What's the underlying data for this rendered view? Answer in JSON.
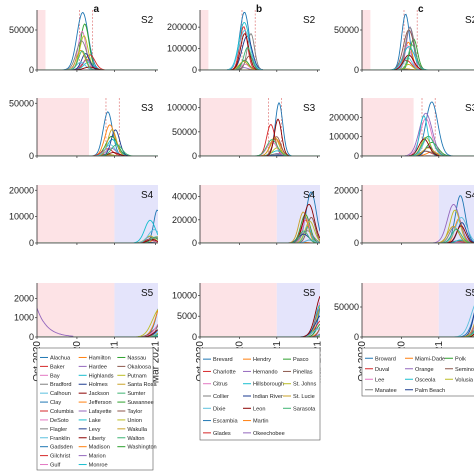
{
  "chart_data": [
    {
      "column": "a",
      "type": "line",
      "x_ticks": [
        "Oct 2020",
        "Nov 2020",
        "Jan 2021",
        "Mar 2021"
      ],
      "rows": [
        {
          "scenario": "S2",
          "y_ticks": [
            "0",
            "50000"
          ],
          "ylim": [
            0,
            75000
          ],
          "pink": [
            0,
            0.07
          ],
          "blue": null,
          "peak_at": 0.4,
          "width": 0.08,
          "max_peak": 72000
        },
        {
          "scenario": "S3",
          "y_ticks": [
            "0",
            "50000"
          ],
          "ylim": [
            0,
            55000
          ],
          "pink": [
            0,
            0.43
          ],
          "blue": null,
          "peak_at": 0.62,
          "width": 0.08,
          "max_peak": 42000
        },
        {
          "scenario": "S4",
          "y_ticks": [
            "0",
            "10000",
            "20000"
          ],
          "ylim": [
            0,
            22000
          ],
          "pink": [
            0,
            0.64
          ],
          "blue": [
            0.64,
            1
          ],
          "peak_at": 0.96,
          "width": 0.08,
          "max_peak": 12500
        },
        {
          "scenario": "S5",
          "y_ticks": [
            "0",
            "1000",
            "2000"
          ],
          "ylim": [
            0,
            2800
          ],
          "pink": [
            0,
            0.64
          ],
          "blue": [
            0.64,
            1
          ],
          "peak_at": 1.05,
          "width": 0.12,
          "max_peak": 2900
        }
      ],
      "legend": [
        "Alachua",
        "Hamilton",
        "Nassau",
        "Baker",
        "Hardee",
        "Okaloosa",
        "Bay",
        "Highlands",
        "Putnam",
        "Bradford",
        "Holmes",
        "Santa Rosa",
        "Calhoun",
        "Jackson",
        "Sumter",
        "Clay",
        "Jefferson",
        "Suwannee",
        "Columbia",
        "Lafayette",
        "Taylor",
        "DeSoto",
        "Lake",
        "Union",
        "Flagler",
        "Levy",
        "Wakulla",
        "Franklin",
        "Liberty",
        "Walton",
        "Gadsden",
        "Madison",
        "Washington",
        "Gilchrist",
        "Marion",
        "",
        "Gulf",
        "Monroe",
        ""
      ]
    },
    {
      "column": "b",
      "type": "line",
      "x_ticks": [
        "Oct 2020",
        "Nov 2020",
        "Jan 2021",
        "Mar 2021"
      ],
      "rows": [
        {
          "scenario": "S2",
          "y_ticks": [
            "0",
            "100000",
            "200000"
          ],
          "ylim": [
            0,
            280000
          ],
          "pink": [
            0,
            0.07
          ],
          "blue": null,
          "peak_at": 0.4,
          "width": 0.08,
          "max_peak": 270000
        },
        {
          "scenario": "S3",
          "y_ticks": [
            "0",
            "50000",
            "100000"
          ],
          "ylim": [
            0,
            120000
          ],
          "pink": [
            0,
            0.43
          ],
          "blue": null,
          "peak_at": 0.62,
          "width": 0.08,
          "max_peak": 110000
        },
        {
          "scenario": "S4",
          "y_ticks": [
            "0",
            "20000",
            "40000"
          ],
          "ylim": [
            0,
            50000
          ],
          "pink": [
            0,
            0.64
          ],
          "blue": [
            0.64,
            1
          ],
          "peak_at": 0.9,
          "width": 0.08,
          "max_peak": 44000
        },
        {
          "scenario": "S5",
          "y_ticks": [
            "0",
            "5000",
            "10000"
          ],
          "ylim": [
            0,
            13000
          ],
          "pink": [
            0,
            0.64
          ],
          "blue": [
            0.64,
            1
          ],
          "peak_at": 1.03,
          "width": 0.1,
          "max_peak": 12500
        }
      ],
      "legend": [
        "Brevard",
        "Hendry",
        "Pasco",
        "Charlotte",
        "Hernando",
        "Pinellas",
        "Citrus",
        "Hillsborough",
        "St. Johns",
        "Collier",
        "Indian River",
        "St. Lucie",
        "Dixie",
        "Leon",
        "Sarasota",
        "Escambia",
        "Martin",
        "",
        "Glades",
        "Okeechobee",
        ""
      ]
    },
    {
      "column": "c",
      "type": "line",
      "x_ticks": [
        "Oct 2020",
        "Nov 2020",
        "Jan 2021",
        "Mar 2021"
      ],
      "rows": [
        {
          "scenario": "S2",
          "y_ticks": [
            "0",
            "50000"
          ],
          "ylim": [
            0,
            75000
          ],
          "pink": [
            0,
            0.07
          ],
          "blue": null,
          "peak_at": 0.4,
          "width": 0.08,
          "max_peak": 70000
        },
        {
          "scenario": "S3",
          "y_ticks": [
            "0",
            "100000",
            "200000"
          ],
          "ylim": [
            0,
            300000
          ],
          "pink": [
            0,
            0.43
          ],
          "blue": null,
          "peak_at": 0.55,
          "width": 0.09,
          "max_peak": 280000
        },
        {
          "scenario": "S4",
          "y_ticks": [
            "0",
            "10000",
            "20000"
          ],
          "ylim": [
            0,
            22000
          ],
          "pink": [
            0,
            0.64
          ],
          "blue": [
            0.64,
            1
          ],
          "peak_at": 0.8,
          "width": 0.09,
          "max_peak": 18000
        },
        {
          "scenario": "S5",
          "y_ticks": [
            "0",
            "50000"
          ],
          "ylim": [
            0,
            90000
          ],
          "pink": [
            0,
            0.64
          ],
          "blue": [
            0.64,
            1
          ],
          "peak_at": 1.0,
          "width": 0.1,
          "max_peak": 85000
        }
      ],
      "legend": [
        "Broward",
        "Miami-Dade",
        "Polk",
        "Duval",
        "Orange",
        "Seminole",
        "Lee",
        "Osceola",
        "Volusia",
        "Manatee",
        "Palm Beach",
        ""
      ]
    }
  ],
  "colors": {
    "pink_shade": "#fde3e6",
    "blue_shade": "#e4e4fb",
    "dashed_lines": "#e07a7a",
    "palette": [
      "#1f77b4",
      "#ff7f0e",
      "#2ca02c",
      "#d62728",
      "#9467bd",
      "#8c564b",
      "#e377c2",
      "#17becf",
      "#bcbd22",
      "#7f7f7f",
      "#1a3a8f",
      "#c9a227",
      "#5bc0de",
      "#8b0000",
      "#3cb371"
    ]
  }
}
